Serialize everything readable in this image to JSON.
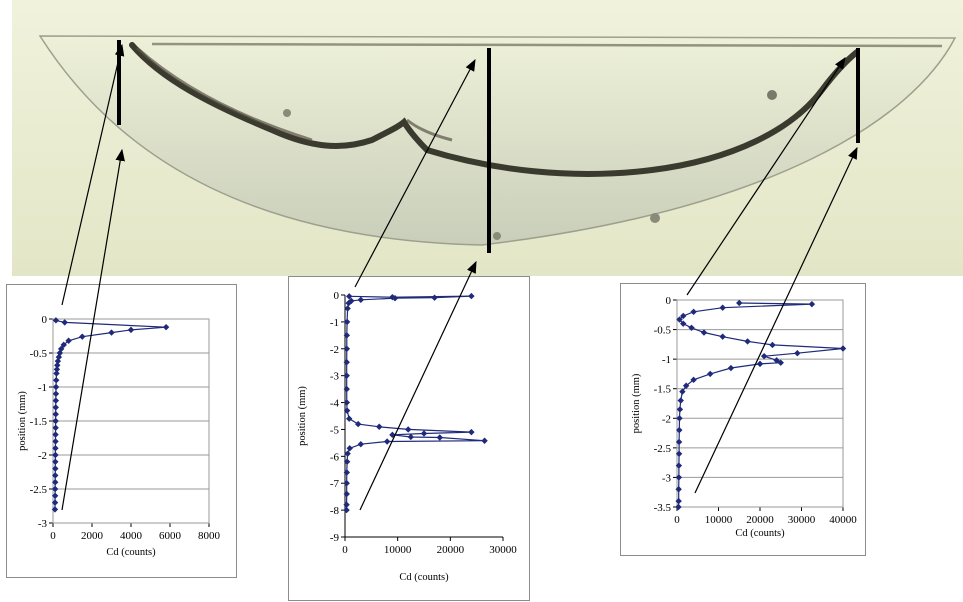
{
  "photo": {
    "description_label": ""
  },
  "chart_data": [
    {
      "type": "line",
      "xlabel": "Cd (counts)",
      "ylabel": "position (mm)",
      "xlim": [
        0,
        8000
      ],
      "ylim": [
        -3,
        0
      ],
      "xticks": [
        0,
        2000,
        4000,
        6000,
        8000
      ],
      "yticks": [
        0,
        -0.5,
        -1,
        -1.5,
        -2,
        -2.5,
        -3
      ],
      "ytick_labels": [
        "0",
        "-0.5",
        "-1",
        "-1.5",
        "-2",
        "-2.5",
        "-3"
      ],
      "grid": true,
      "marker": "diamond",
      "color": "#1f2a7a",
      "points": [
        [
          150,
          -0.02
        ],
        [
          600,
          -0.05
        ],
        [
          5800,
          -0.12
        ],
        [
          4000,
          -0.16
        ],
        [
          3000,
          -0.2
        ],
        [
          1500,
          -0.26
        ],
        [
          800,
          -0.32
        ],
        [
          550,
          -0.38
        ],
        [
          420,
          -0.44
        ],
        [
          350,
          -0.5
        ],
        [
          300,
          -0.56
        ],
        [
          250,
          -0.62
        ],
        [
          220,
          -0.68
        ],
        [
          200,
          -0.74
        ],
        [
          180,
          -0.8
        ],
        [
          165,
          -0.9
        ],
        [
          155,
          -1.0
        ],
        [
          150,
          -1.1
        ],
        [
          145,
          -1.2
        ],
        [
          140,
          -1.3
        ],
        [
          140,
          -1.4
        ],
        [
          135,
          -1.5
        ],
        [
          135,
          -1.6
        ],
        [
          130,
          -1.7
        ],
        [
          130,
          -1.8
        ],
        [
          125,
          -1.9
        ],
        [
          125,
          -2.0
        ],
        [
          120,
          -2.1
        ],
        [
          120,
          -2.2
        ],
        [
          115,
          -2.3
        ],
        [
          115,
          -2.4
        ],
        [
          110,
          -2.5
        ],
        [
          110,
          -2.6
        ],
        [
          105,
          -2.7
        ],
        [
          100,
          -2.8
        ]
      ]
    },
    {
      "type": "line",
      "xlabel": "Cd (counts)",
      "ylabel": "position (mm)",
      "xlim": [
        0,
        30000
      ],
      "ylim": [
        -9,
        0
      ],
      "xticks": [
        0,
        10000,
        20000,
        30000
      ],
      "yticks": [
        0,
        -1,
        -2,
        -3,
        -4,
        -5,
        -6,
        -7,
        -8,
        -9
      ],
      "ytick_labels": [
        "0",
        "-1",
        "-2",
        "-3",
        "-4",
        "-5",
        "-6",
        "-7",
        "-8",
        "-9"
      ],
      "grid": false,
      "marker": "diamond",
      "color": "#1f2a7a",
      "points": [
        [
          800,
          -0.05
        ],
        [
          9000,
          -0.08
        ],
        [
          24000,
          -0.04
        ],
        [
          17000,
          -0.1
        ],
        [
          9500,
          -0.12
        ],
        [
          3000,
          -0.18
        ],
        [
          1200,
          -0.22
        ],
        [
          700,
          -0.3
        ],
        [
          500,
          -0.5
        ],
        [
          400,
          -1.0
        ],
        [
          350,
          -1.5
        ],
        [
          350,
          -2.0
        ],
        [
          330,
          -2.5
        ],
        [
          330,
          -3.0
        ],
        [
          330,
          -3.5
        ],
        [
          350,
          -4.0
        ],
        [
          400,
          -4.3
        ],
        [
          800,
          -4.6
        ],
        [
          2500,
          -4.8
        ],
        [
          6500,
          -4.9
        ],
        [
          12000,
          -5.0
        ],
        [
          24000,
          -5.1
        ],
        [
          15000,
          -5.15
        ],
        [
          9000,
          -5.2
        ],
        [
          12500,
          -5.28
        ],
        [
          18000,
          -5.3
        ],
        [
          26500,
          -5.42
        ],
        [
          8000,
          -5.45
        ],
        [
          3000,
          -5.55
        ],
        [
          900,
          -5.7
        ],
        [
          500,
          -5.9
        ],
        [
          400,
          -6.2
        ],
        [
          350,
          -6.6
        ],
        [
          330,
          -7.0
        ],
        [
          330,
          -7.4
        ],
        [
          300,
          -7.8
        ],
        [
          300,
          -8.0
        ]
      ]
    },
    {
      "type": "line",
      "xlabel": "Cd (counts)",
      "ylabel": "position (mm)",
      "xlim": [
        0,
        40000
      ],
      "ylim": [
        -3.5,
        0
      ],
      "xticks": [
        0,
        10000,
        20000,
        30000,
        40000
      ],
      "yticks": [
        0,
        -0.5,
        -1,
        -1.5,
        -2,
        -2.5,
        -3,
        -3.5
      ],
      "ytick_labels": [
        "0",
        "-0.5",
        "-1",
        "-1.5",
        "-2",
        "-2.5",
        "-3",
        "-3.5"
      ],
      "grid": true,
      "marker": "diamond",
      "color": "#1f2a7a",
      "points": [
        [
          15000,
          -0.05
        ],
        [
          32500,
          -0.07
        ],
        [
          11000,
          -0.13
        ],
        [
          4000,
          -0.2
        ],
        [
          1500,
          -0.27
        ],
        [
          600,
          -0.33
        ],
        [
          1500,
          -0.4
        ],
        [
          3500,
          -0.47
        ],
        [
          6500,
          -0.55
        ],
        [
          11000,
          -0.62
        ],
        [
          17000,
          -0.7
        ],
        [
          23000,
          -0.76
        ],
        [
          40000,
          -0.82
        ],
        [
          29000,
          -0.9
        ],
        [
          21000,
          -0.95
        ],
        [
          24000,
          -1.02
        ],
        [
          25000,
          -1.06
        ],
        [
          20000,
          -1.08
        ],
        [
          13000,
          -1.15
        ],
        [
          8000,
          -1.25
        ],
        [
          4000,
          -1.35
        ],
        [
          2200,
          -1.45
        ],
        [
          1300,
          -1.55
        ],
        [
          900,
          -1.7
        ],
        [
          700,
          -1.85
        ],
        [
          600,
          -2.0
        ],
        [
          550,
          -2.2
        ],
        [
          500,
          -2.4
        ],
        [
          500,
          -2.6
        ],
        [
          450,
          -2.8
        ],
        [
          450,
          -3.0
        ],
        [
          400,
          -3.2
        ],
        [
          400,
          -3.4
        ],
        [
          350,
          -3.5
        ]
      ]
    }
  ]
}
